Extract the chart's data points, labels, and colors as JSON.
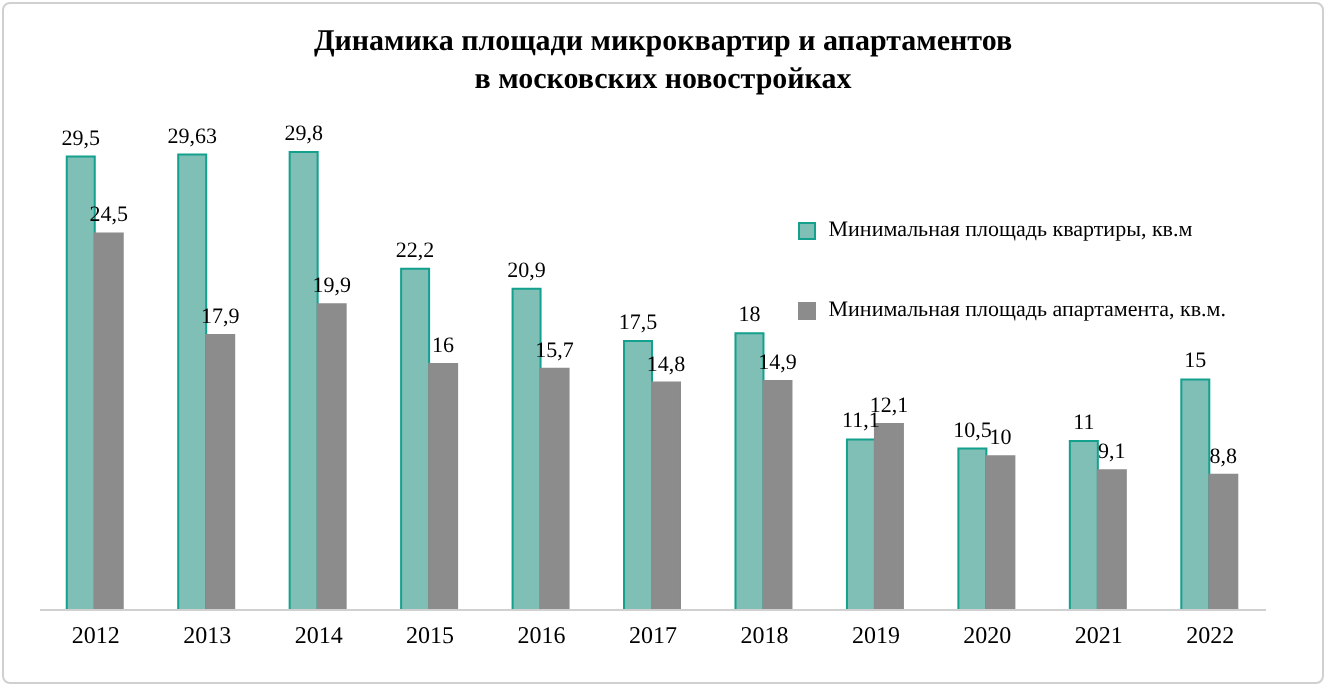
{
  "chart_data": {
    "type": "bar",
    "title": "Динамика площади микроквартир и апартаментов\nв московских новостройках",
    "categories": [
      "2012",
      "2013",
      "2014",
      "2015",
      "2016",
      "2017",
      "2018",
      "2019",
      "2020",
      "2021",
      "2022"
    ],
    "series": [
      {
        "name": "Минимальная площадь квартиры, кв.м",
        "color": "#7fbfb6",
        "values": [
          29.5,
          29.63,
          29.8,
          22.2,
          20.9,
          17.5,
          18,
          11.1,
          10.5,
          11,
          15
        ],
        "value_labels": [
          "29,5",
          "29,63",
          "29,8",
          "22,2",
          "20,9",
          "17,5",
          "18",
          "11,1",
          "10,5",
          "11",
          "15"
        ]
      },
      {
        "name": "Минимальная площадь апартамента, кв.м.",
        "color": "#8c8c8c",
        "values": [
          24.5,
          17.9,
          19.9,
          16,
          15.7,
          14.8,
          14.9,
          12.1,
          10,
          9.1,
          8.8
        ],
        "value_labels": [
          "24,5",
          "17,9",
          "19,9",
          "16",
          "15,7",
          "14,8",
          "14,9",
          "12,1",
          "10",
          "9,1",
          "8,8"
        ]
      }
    ],
    "legend": "top right",
    "grid": false
  }
}
